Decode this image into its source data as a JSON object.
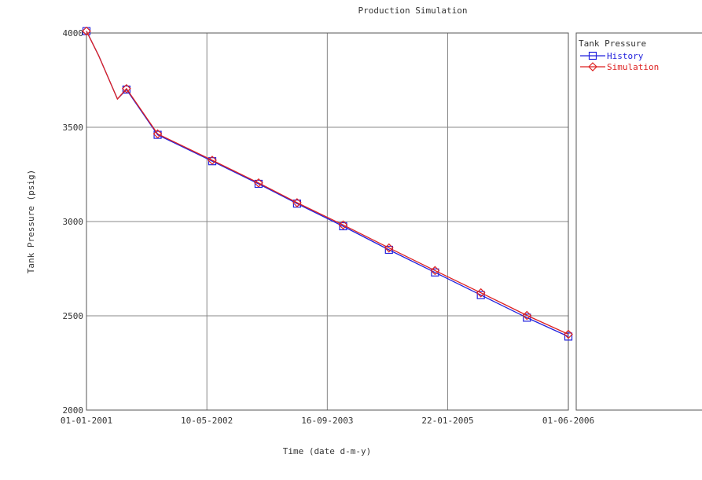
{
  "chart_data": {
    "type": "line",
    "title": "Production Simulation",
    "xlabel": "Time (date d-m-y)",
    "ylabel": "Tank Pressure (psig)",
    "x_type": "date",
    "xlim": [
      "2001-01-01",
      "2006-06-01"
    ],
    "ylim": [
      2000,
      4000
    ],
    "xticks": [
      {
        "date": "2001-01-01",
        "label": "01-01-2001"
      },
      {
        "date": "2002-05-10",
        "label": "10-05-2002"
      },
      {
        "date": "2003-09-16",
        "label": "16-09-2003"
      },
      {
        "date": "2005-01-22",
        "label": "22-01-2005"
      },
      {
        "date": "2006-06-01",
        "label": "01-06-2006"
      }
    ],
    "yticks": [
      2000,
      2500,
      3000,
      3500,
      4000
    ],
    "grid": true,
    "legend": {
      "title": "Tank Pressure",
      "position": "right"
    },
    "series": [
      {
        "name": "History",
        "color": "#2222dd",
        "marker": "square",
        "x": [
          "2001-01-01",
          "2001-02-20",
          "2001-05-08",
          "2001-06-14",
          "2001-10-20",
          "2002-06-01",
          "2002-12-08",
          "2003-05-15",
          "2003-11-20",
          "2004-05-26",
          "2004-12-01",
          "2005-06-07",
          "2005-12-13",
          "2006-06-01"
        ],
        "y": [
          4010,
          3880,
          3650,
          3700,
          3460,
          3320,
          3200,
          3095,
          2975,
          2850,
          2730,
          2610,
          2490,
          2390
        ],
        "marker_x": [
          "2001-01-01",
          "2001-06-14",
          "2001-10-20",
          "2002-06-01",
          "2002-12-08",
          "2003-05-15",
          "2003-11-20",
          "2004-05-26",
          "2004-12-01",
          "2005-06-07",
          "2005-12-13",
          "2006-06-01"
        ],
        "marker_y": [
          4010,
          3700,
          3460,
          3320,
          3200,
          3095,
          2975,
          2850,
          2730,
          2610,
          2490,
          2390
        ]
      },
      {
        "name": "Simulation",
        "color": "#dd2222",
        "marker": "diamond",
        "x": [
          "2001-01-01",
          "2001-02-20",
          "2001-05-08",
          "2001-06-14",
          "2001-10-20",
          "2002-06-01",
          "2002-12-08",
          "2003-05-15",
          "2003-11-20",
          "2004-05-26",
          "2004-12-01",
          "2005-06-07",
          "2005-12-13",
          "2006-06-01"
        ],
        "y": [
          4010,
          3880,
          3650,
          3705,
          3465,
          3325,
          3205,
          3100,
          2982,
          2860,
          2740,
          2622,
          2502,
          2402
        ],
        "marker_x": [
          "2001-01-01",
          "2001-06-14",
          "2001-10-20",
          "2002-06-01",
          "2002-12-08",
          "2003-05-15",
          "2003-11-20",
          "2004-05-26",
          "2004-12-01",
          "2005-06-07",
          "2005-12-13",
          "2006-06-01"
        ],
        "marker_y": [
          4010,
          3705,
          3465,
          3325,
          3205,
          3100,
          2982,
          2860,
          2740,
          2622,
          2502,
          2402
        ]
      }
    ]
  }
}
